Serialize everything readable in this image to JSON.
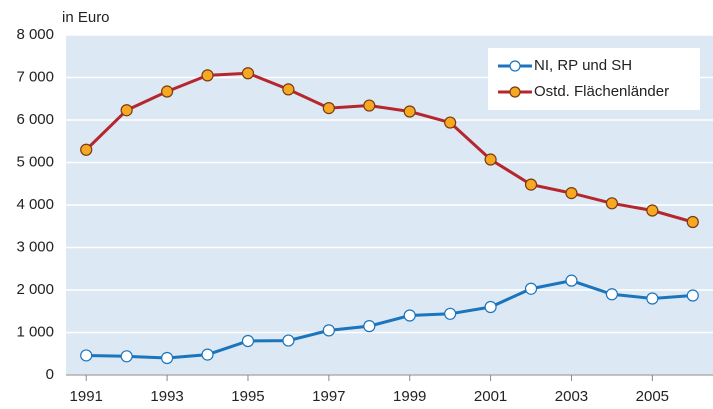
{
  "chart_data": {
    "type": "line",
    "y_label": "in Euro",
    "x": [
      1991,
      1992,
      1993,
      1994,
      1995,
      1996,
      1997,
      1998,
      1999,
      2000,
      2001,
      2002,
      2003,
      2004,
      2005,
      2006
    ],
    "series": [
      {
        "name": "NI, RP und SH",
        "color": "#1b75bc",
        "marker_fill": "#ffffff",
        "values": [
          460,
          440,
          400,
          480,
          800,
          810,
          1050,
          1150,
          1400,
          1440,
          1600,
          2030,
          2220,
          1900,
          1800,
          1870
        ]
      },
      {
        "name": "Ostd. Flächenländer",
        "color": "#b5272d",
        "marker_fill": "#f7a823",
        "values": [
          5300,
          6230,
          6670,
          7050,
          7100,
          6720,
          6280,
          6340,
          6200,
          5940,
          5070,
          4480,
          4280,
          4040,
          3870,
          3600
        ]
      }
    ],
    "xlim": [
      1990.5,
      2006.5
    ],
    "xticks": [
      1991,
      1993,
      1995,
      1997,
      1999,
      2001,
      2003,
      2005
    ],
    "ylim": [
      0,
      8000
    ],
    "yticks": [
      0,
      {
        "value": 1000,
        "label": "1 000"
      },
      {
        "value": 2000,
        "label": "2 000"
      },
      {
        "value": 3000,
        "label": "3 000"
      },
      {
        "value": 4000,
        "label": "4 000"
      },
      {
        "value": 5000,
        "label": "5 000"
      },
      {
        "value": 6000,
        "label": "6 000"
      },
      {
        "value": 7000,
        "label": "7 000"
      },
      {
        "value": 8000,
        "label": "8 000"
      }
    ],
    "grid": true,
    "background": "#dce8f4",
    "legend": "top-right"
  }
}
